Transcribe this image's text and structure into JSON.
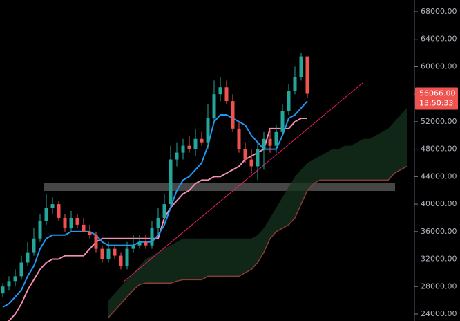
{
  "chart_data": {
    "type": "candlestick",
    "categories": [
      null,
      null,
      null,
      null,
      null,
      null,
      null,
      null,
      null,
      null,
      null,
      null,
      null,
      null,
      null,
      null,
      null,
      null,
      null,
      null,
      null,
      null,
      null,
      null,
      null,
      null,
      null,
      null,
      null,
      null,
      null,
      null,
      null,
      null,
      null,
      null,
      null,
      null,
      null,
      null,
      null,
      null,
      null,
      null,
      null,
      null,
      null,
      null,
      null,
      null,
      null,
      null,
      null,
      null,
      null,
      null,
      null,
      null,
      null,
      null,
      null,
      null,
      null,
      null,
      null,
      null
    ],
    "open": [
      27000,
      28000,
      28800,
      29500,
      31500,
      33000,
      35000,
      37500,
      39500,
      40000,
      38000,
      36500,
      38000,
      37000,
      36000,
      35500,
      33500,
      32000,
      33500,
      32500,
      31000,
      33500,
      34000,
      34500,
      34000,
      36500,
      38000,
      40000,
      46500,
      47500,
      48500,
      48000,
      49500,
      49000,
      52500,
      56000,
      57000,
      55000,
      51000,
      48000,
      46500,
      45500,
      48000,
      49500,
      48500,
      50500,
      53500,
      56500,
      58500,
      61500,
      null,
      null,
      null,
      null,
      null,
      null,
      null,
      null,
      null,
      null,
      null,
      null,
      null,
      null,
      null,
      null
    ],
    "high": [
      28500,
      29500,
      30500,
      32500,
      34500,
      36500,
      38500,
      41500,
      41000,
      40500,
      38500,
      39000,
      38500,
      38000,
      37000,
      36000,
      34000,
      34500,
      34000,
      33000,
      34500,
      35500,
      35500,
      35500,
      37500,
      39500,
      41500,
      48500,
      49000,
      49500,
      50000,
      51000,
      50500,
      54500,
      58000,
      58500,
      58000,
      56000,
      52000,
      49000,
      48000,
      49000,
      50500,
      51000,
      51500,
      54500,
      57500,
      60000,
      62000,
      61500,
      null,
      null,
      null,
      null,
      null,
      null,
      null,
      null,
      null,
      null,
      null,
      null,
      null,
      null,
      null,
      null
    ],
    "low": [
      26500,
      27500,
      28000,
      29000,
      31000,
      32500,
      34500,
      37000,
      38500,
      37500,
      36000,
      36000,
      36500,
      36000,
      35000,
      33000,
      31500,
      31500,
      32000,
      30500,
      30500,
      33000,
      33500,
      33500,
      33500,
      35500,
      37500,
      39500,
      45500,
      46500,
      47500,
      47000,
      48500,
      48000,
      52000,
      55000,
      54500,
      50500,
      47500,
      46000,
      44500,
      43500,
      45000,
      47500,
      47500,
      50000,
      53000,
      56000,
      58000,
      55500,
      null,
      null,
      null,
      null,
      null,
      null,
      null,
      null,
      null,
      null,
      null,
      null,
      null,
      null,
      null,
      null
    ],
    "close": [
      28000,
      28800,
      29500,
      31500,
      33000,
      35000,
      37500,
      39500,
      40000,
      38000,
      36500,
      38000,
      37000,
      36000,
      35500,
      33500,
      32000,
      33500,
      32500,
      31000,
      33500,
      34000,
      34500,
      34000,
      36500,
      38000,
      40000,
      46500,
      47500,
      48500,
      48000,
      49500,
      49000,
      52500,
      56000,
      57000,
      55000,
      51000,
      48000,
      46500,
      45500,
      48000,
      49500,
      48500,
      50500,
      53500,
      56500,
      58500,
      61500,
      56066,
      null,
      null,
      null,
      null,
      null,
      null,
      null,
      null,
      null,
      null,
      null,
      null,
      null,
      null,
      null,
      null
    ],
    "up_color": "#26a69a",
    "down_color": "#ef5350",
    "series": [
      {
        "color": "#2196f3",
        "values": [
          25000,
          25500,
          26500,
          27500,
          29500,
          31000,
          33500,
          35000,
          35500,
          35500,
          35500,
          36000,
          36000,
          36000,
          36000,
          35500,
          34500,
          34000,
          34000,
          34000,
          34000,
          34000,
          34500,
          34500,
          34500,
          35500,
          37000,
          39500,
          42000,
          43500,
          44000,
          45000,
          46000,
          48500,
          52000,
          53000,
          53000,
          52500,
          52000,
          51500,
          50000,
          49000,
          48000,
          48000,
          48000,
          50000,
          52500,
          53000,
          54000,
          55000,
          null,
          null,
          null,
          null,
          null,
          null,
          null,
          null,
          null,
          null,
          null,
          null,
          null,
          null,
          null,
          null
        ]
      },
      {
        "color": "#f48fb1",
        "values": [
          22500,
          23000,
          24000,
          25500,
          27500,
          29000,
          30500,
          31500,
          32000,
          32000,
          32500,
          32500,
          32500,
          32500,
          33500,
          34500,
          35000,
          35000,
          35000,
          35000,
          35000,
          35000,
          35000,
          35000,
          35000,
          35000,
          38000,
          39500,
          40500,
          41500,
          42000,
          43000,
          43500,
          43500,
          44000,
          44000,
          44500,
          45000,
          45500,
          46500,
          47000,
          47500,
          48000,
          51000,
          51000,
          51000,
          51000,
          52000,
          52500,
          52500,
          null,
          null,
          null,
          null,
          null,
          null,
          null,
          null,
          null,
          null,
          null,
          null,
          null,
          null,
          null,
          null
        ]
      },
      {
        "color": "#16331f",
        "values": [
          null,
          null,
          null,
          null,
          null,
          null,
          null,
          null,
          null,
          null,
          null,
          null,
          null,
          null,
          null,
          null,
          null,
          26000,
          27000,
          28000,
          29000,
          30000,
          31000,
          32000,
          32500,
          33000,
          33500,
          34000,
          34500,
          35000,
          35000,
          35000,
          35000,
          35000,
          35000,
          35000,
          35000,
          35000,
          35000,
          35000,
          35000,
          35500,
          36500,
          38000,
          39500,
          41000,
          42500,
          44000,
          45000,
          46000,
          46500,
          47000,
          47500,
          48000,
          48000,
          48500,
          48500,
          49000,
          49500,
          49500,
          50000,
          50500,
          51000,
          52000,
          53000,
          54000
        ]
      },
      {
        "color": "#8b3a36",
        "values": [
          null,
          null,
          null,
          null,
          null,
          null,
          null,
          null,
          null,
          null,
          null,
          null,
          null,
          null,
          null,
          null,
          null,
          23500,
          24500,
          25500,
          26500,
          27500,
          28300,
          28500,
          28500,
          28500,
          28500,
          28500,
          28800,
          29000,
          29000,
          29000,
          29000,
          29500,
          29500,
          29500,
          29500,
          29500,
          29500,
          30000,
          30500,
          31500,
          33000,
          35000,
          36000,
          36500,
          37000,
          38000,
          40000,
          42000,
          43000,
          43500,
          43500,
          43500,
          43500,
          43500,
          43500,
          43500,
          43500,
          43500,
          43500,
          43500,
          43500,
          44500,
          45000,
          45500
        ]
      }
    ],
    "ylim": [
      22992,
      69713
    ],
    "yticks": [
      {
        "value": 24000,
        "label": "24000.00"
      },
      {
        "value": 28000,
        "label": "28000.00"
      },
      {
        "value": 32000,
        "label": "32000.00"
      },
      {
        "value": 36000,
        "label": "36000.00"
      },
      {
        "value": 40000,
        "label": "40000.00"
      },
      {
        "value": 44000,
        "label": "44000.00"
      },
      {
        "value": 48000,
        "label": "48000.00"
      },
      {
        "value": 52000,
        "label": "52000.00"
      },
      {
        "value": 56000,
        "label": "56000.00"
      },
      {
        "value": 60000,
        "label": "60000.00"
      },
      {
        "value": 64000,
        "label": "64000.00"
      },
      {
        "value": 68000,
        "label": "68000.00"
      }
    ],
    "last_price": {
      "value": 56066,
      "label": "56066.00"
    },
    "countdown": "13:50:33",
    "grid": false
  }
}
